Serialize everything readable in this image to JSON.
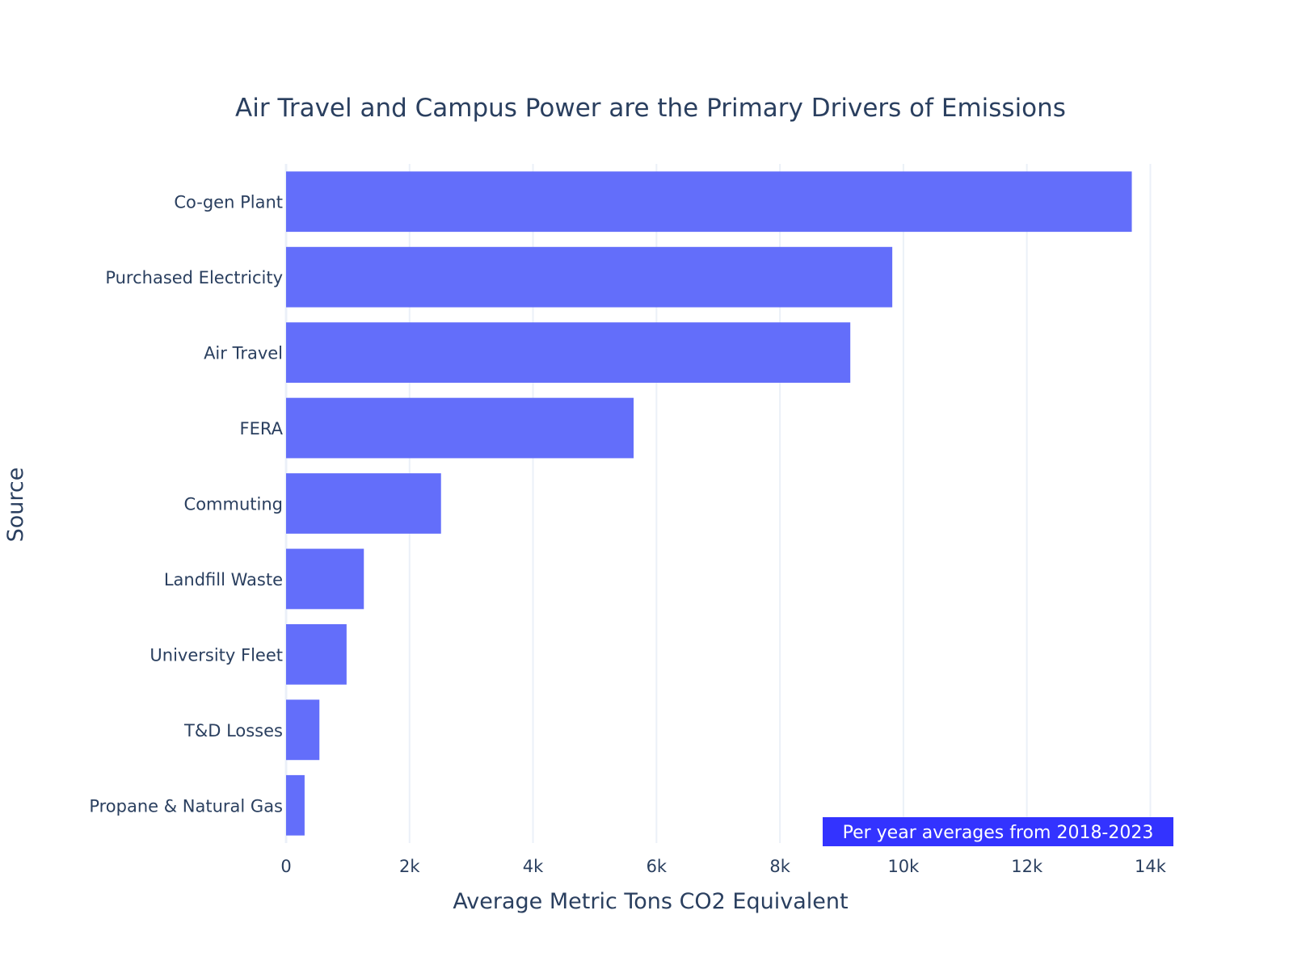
{
  "chart_data": {
    "type": "bar",
    "orientation": "horizontal",
    "title": "Air Travel and Campus Power are the Primary Drivers of Emissions",
    "xlabel": "Average Metric Tons CO2 Equivalent",
    "ylabel": "Source",
    "categories": [
      "Co-gen Plant",
      "Purchased Electricity",
      "Air Travel",
      "FERA",
      "Commuting",
      "Landfill Waste",
      "University Fleet",
      "T&D Losses",
      "Propane & Natural Gas"
    ],
    "values": [
      13700,
      9820,
      9140,
      5630,
      2510,
      1260,
      980,
      540,
      300
    ],
    "xlim": [
      0,
      14400
    ],
    "xticks": [
      0,
      2000,
      4000,
      6000,
      8000,
      10000,
      12000,
      14000
    ],
    "xtick_labels": [
      "0",
      "2k",
      "4k",
      "6k",
      "8k",
      "10k",
      "12k",
      "14k"
    ],
    "grid": true,
    "bar_color": "#636efa",
    "annotation": {
      "text": "Per year averages from 2018-2023",
      "bg_color": "#3333ff",
      "text_color": "#ffffff",
      "position": "bottom-right"
    }
  }
}
